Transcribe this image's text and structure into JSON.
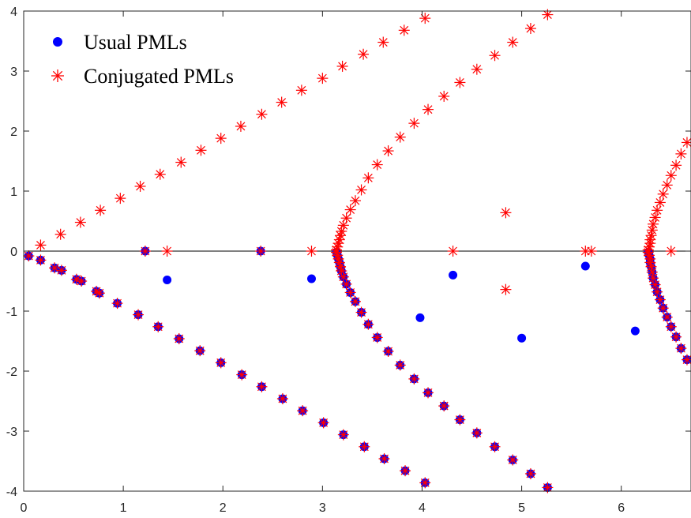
{
  "chart_data": {
    "type": "scatter",
    "xlim": [
      0,
      6.7
    ],
    "ylim": [
      -4,
      4
    ],
    "xticks": [
      "0",
      "1",
      "2",
      "3",
      "4",
      "5",
      "6"
    ],
    "yticks": [
      "-4",
      "-3",
      "-2",
      "-1",
      "0",
      "1",
      "2",
      "3",
      "4"
    ],
    "grid": false,
    "legend_position": "top-left",
    "reference_line_y": 0,
    "series": [
      {
        "name": "Usual PMLs",
        "marker": "filled-circle",
        "color": "#0000ff",
        "points": [
          [
            0.05,
            -0.08
          ],
          [
            0.17,
            -0.15
          ],
          [
            0.31,
            -0.28
          ],
          [
            0.38,
            -0.32
          ],
          [
            0.53,
            -0.47
          ],
          [
            0.58,
            -0.5
          ],
          [
            0.73,
            -0.67
          ],
          [
            0.76,
            -0.7
          ],
          [
            0.94,
            -0.87
          ],
          [
            1.15,
            -1.06
          ],
          [
            1.35,
            -1.26
          ],
          [
            1.56,
            -1.46
          ],
          [
            1.77,
            -1.66
          ],
          [
            1.98,
            -1.86
          ],
          [
            2.19,
            -2.06
          ],
          [
            2.39,
            -2.26
          ],
          [
            2.6,
            -2.46
          ],
          [
            2.8,
            -2.66
          ],
          [
            3.01,
            -2.86
          ],
          [
            3.21,
            -3.06
          ],
          [
            3.42,
            -3.26
          ],
          [
            3.62,
            -3.46
          ],
          [
            3.83,
            -3.66
          ],
          [
            4.03,
            -3.86
          ],
          [
            1.22,
            0.0
          ],
          [
            2.38,
            0.0
          ],
          [
            1.44,
            -0.48
          ],
          [
            2.89,
            -0.46
          ],
          [
            3.14,
            -0.02
          ],
          [
            3.15,
            -0.07
          ],
          [
            3.16,
            -0.13
          ],
          [
            3.17,
            -0.19
          ],
          [
            3.18,
            -0.26
          ],
          [
            3.19,
            -0.33
          ],
          [
            3.21,
            -0.43
          ],
          [
            3.24,
            -0.55
          ],
          [
            3.28,
            -0.69
          ],
          [
            3.33,
            -0.84
          ],
          [
            3.39,
            -1.02
          ],
          [
            3.46,
            -1.22
          ],
          [
            3.55,
            -1.44
          ],
          [
            3.66,
            -1.67
          ],
          [
            3.78,
            -1.9
          ],
          [
            3.92,
            -2.13
          ],
          [
            4.06,
            -2.36
          ],
          [
            4.22,
            -2.58
          ],
          [
            4.38,
            -2.81
          ],
          [
            4.55,
            -3.03
          ],
          [
            4.73,
            -3.26
          ],
          [
            4.91,
            -3.48
          ],
          [
            5.09,
            -3.71
          ],
          [
            5.26,
            -3.94
          ],
          [
            4.31,
            -0.4
          ],
          [
            3.98,
            -1.11
          ],
          [
            5.0,
            -1.45
          ],
          [
            5.64,
            -0.25
          ],
          [
            6.14,
            -1.33
          ],
          [
            6.27,
            -0.02
          ],
          [
            6.28,
            -0.07
          ],
          [
            6.29,
            -0.13
          ],
          [
            6.29,
            -0.19
          ],
          [
            6.3,
            -0.26
          ],
          [
            6.31,
            -0.35
          ],
          [
            6.32,
            -0.45
          ],
          [
            6.34,
            -0.56
          ],
          [
            6.36,
            -0.68
          ],
          [
            6.39,
            -0.81
          ],
          [
            6.42,
            -0.95
          ],
          [
            6.46,
            -1.1
          ],
          [
            6.5,
            -1.26
          ],
          [
            6.55,
            -1.43
          ],
          [
            6.6,
            -1.62
          ],
          [
            6.66,
            -1.81
          ]
        ]
      },
      {
        "name": "Conjugated PMLs",
        "marker": "asterisk",
        "color": "#ff0000",
        "points": [
          [
            0.17,
            0.1
          ],
          [
            0.37,
            0.28
          ],
          [
            0.57,
            0.48
          ],
          [
            0.77,
            0.68
          ],
          [
            0.97,
            0.88
          ],
          [
            1.17,
            1.08
          ],
          [
            1.37,
            1.28
          ],
          [
            1.58,
            1.48
          ],
          [
            1.78,
            1.68
          ],
          [
            1.98,
            1.88
          ],
          [
            2.18,
            2.08
          ],
          [
            2.39,
            2.28
          ],
          [
            2.59,
            2.48
          ],
          [
            2.79,
            2.68
          ],
          [
            3.0,
            2.88
          ],
          [
            3.2,
            3.08
          ],
          [
            3.41,
            3.28
          ],
          [
            3.61,
            3.48
          ],
          [
            3.82,
            3.68
          ],
          [
            4.03,
            3.88
          ],
          [
            0.05,
            -0.08
          ],
          [
            0.17,
            -0.15
          ],
          [
            0.31,
            -0.28
          ],
          [
            0.38,
            -0.32
          ],
          [
            0.53,
            -0.47
          ],
          [
            0.58,
            -0.5
          ],
          [
            0.73,
            -0.67
          ],
          [
            0.76,
            -0.7
          ],
          [
            0.94,
            -0.87
          ],
          [
            1.15,
            -1.06
          ],
          [
            1.35,
            -1.26
          ],
          [
            1.56,
            -1.46
          ],
          [
            1.77,
            -1.66
          ],
          [
            1.98,
            -1.86
          ],
          [
            2.19,
            -2.06
          ],
          [
            2.39,
            -2.26
          ],
          [
            2.6,
            -2.46
          ],
          [
            2.8,
            -2.66
          ],
          [
            3.01,
            -2.86
          ],
          [
            3.21,
            -3.06
          ],
          [
            3.42,
            -3.26
          ],
          [
            3.62,
            -3.46
          ],
          [
            3.83,
            -3.66
          ],
          [
            4.03,
            -3.86
          ],
          [
            1.22,
            0.0
          ],
          [
            1.44,
            0.0
          ],
          [
            2.38,
            0.0
          ],
          [
            2.89,
            0.0
          ],
          [
            4.31,
            0.0
          ],
          [
            5.64,
            0.0
          ],
          [
            5.7,
            0.0
          ],
          [
            6.5,
            0.0
          ],
          [
            4.84,
            0.64
          ],
          [
            4.84,
            -0.64
          ],
          [
            3.14,
            0.02
          ],
          [
            3.15,
            0.07
          ],
          [
            3.16,
            0.13
          ],
          [
            3.17,
            0.19
          ],
          [
            3.18,
            0.26
          ],
          [
            3.19,
            0.33
          ],
          [
            3.21,
            0.43
          ],
          [
            3.24,
            0.55
          ],
          [
            3.28,
            0.69
          ],
          [
            3.33,
            0.84
          ],
          [
            3.39,
            1.02
          ],
          [
            3.46,
            1.22
          ],
          [
            3.55,
            1.44
          ],
          [
            3.66,
            1.67
          ],
          [
            3.78,
            1.9
          ],
          [
            3.92,
            2.13
          ],
          [
            4.06,
            2.36
          ],
          [
            4.22,
            2.58
          ],
          [
            4.38,
            2.81
          ],
          [
            4.55,
            3.03
          ],
          [
            4.73,
            3.26
          ],
          [
            4.91,
            3.48
          ],
          [
            5.09,
            3.71
          ],
          [
            5.26,
            3.94
          ],
          [
            3.14,
            -0.02
          ],
          [
            3.15,
            -0.07
          ],
          [
            3.16,
            -0.13
          ],
          [
            3.17,
            -0.19
          ],
          [
            3.18,
            -0.26
          ],
          [
            3.19,
            -0.33
          ],
          [
            3.21,
            -0.43
          ],
          [
            3.24,
            -0.55
          ],
          [
            3.28,
            -0.69
          ],
          [
            3.33,
            -0.84
          ],
          [
            3.39,
            -1.02
          ],
          [
            3.46,
            -1.22
          ],
          [
            3.55,
            -1.44
          ],
          [
            3.66,
            -1.67
          ],
          [
            3.78,
            -1.9
          ],
          [
            3.92,
            -2.13
          ],
          [
            4.06,
            -2.36
          ],
          [
            4.22,
            -2.58
          ],
          [
            4.38,
            -2.81
          ],
          [
            4.55,
            -3.03
          ],
          [
            4.73,
            -3.26
          ],
          [
            4.91,
            -3.48
          ],
          [
            5.09,
            -3.71
          ],
          [
            5.26,
            -3.94
          ],
          [
            6.27,
            0.02
          ],
          [
            6.28,
            0.07
          ],
          [
            6.29,
            0.13
          ],
          [
            6.29,
            0.19
          ],
          [
            6.3,
            0.26
          ],
          [
            6.31,
            0.35
          ],
          [
            6.32,
            0.45
          ],
          [
            6.34,
            0.56
          ],
          [
            6.36,
            0.68
          ],
          [
            6.39,
            0.81
          ],
          [
            6.42,
            0.95
          ],
          [
            6.46,
            1.1
          ],
          [
            6.5,
            1.26
          ],
          [
            6.55,
            1.43
          ],
          [
            6.6,
            1.62
          ],
          [
            6.66,
            1.81
          ],
          [
            6.27,
            -0.02
          ],
          [
            6.28,
            -0.07
          ],
          [
            6.29,
            -0.13
          ],
          [
            6.29,
            -0.19
          ],
          [
            6.3,
            -0.26
          ],
          [
            6.31,
            -0.35
          ],
          [
            6.32,
            -0.45
          ],
          [
            6.34,
            -0.56
          ],
          [
            6.36,
            -0.68
          ],
          [
            6.39,
            -0.81
          ],
          [
            6.42,
            -0.95
          ],
          [
            6.46,
            -1.1
          ],
          [
            6.5,
            -1.26
          ],
          [
            6.55,
            -1.43
          ],
          [
            6.6,
            -1.62
          ],
          [
            6.66,
            -1.81
          ]
        ]
      }
    ]
  }
}
